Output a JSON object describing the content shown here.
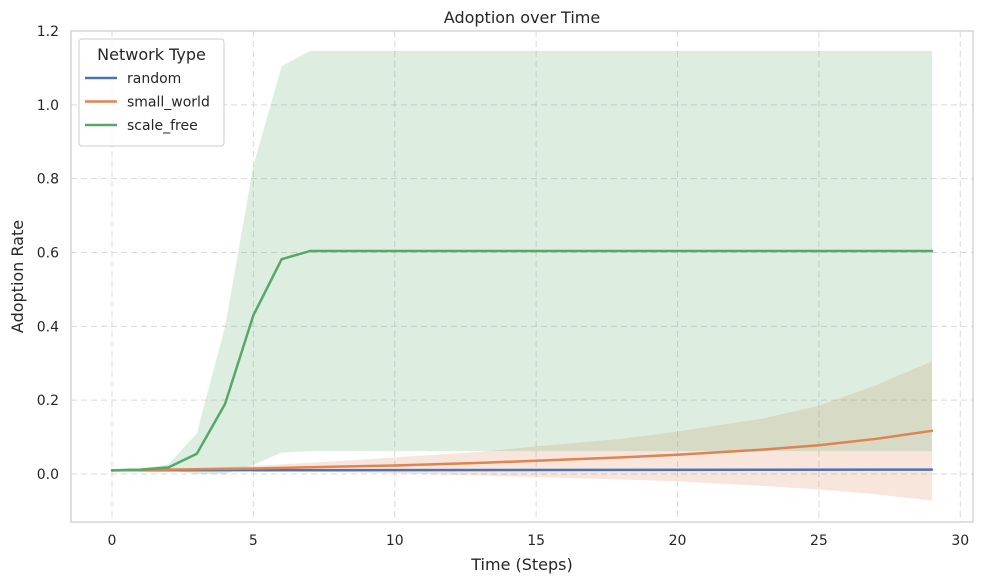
{
  "chart_data": {
    "type": "line",
    "title": "Adoption over Time",
    "xlabel": "Time (Steps)",
    "ylabel": "Adoption Rate",
    "xlim": [
      -1.45,
      30.45
    ],
    "ylim": [
      -0.13,
      1.2
    ],
    "xticks": [
      0,
      5,
      10,
      15,
      20,
      25,
      30
    ],
    "yticks": [
      0.0,
      0.2,
      0.4,
      0.6,
      0.8,
      1.0,
      1.2
    ],
    "xtick_labels": [
      "0",
      "5",
      "10",
      "15",
      "20",
      "25",
      "30"
    ],
    "ytick_labels": [
      "0.0",
      "0.2",
      "0.4",
      "0.6",
      "0.8",
      "1.0",
      "1.2"
    ],
    "grid": true,
    "legend": {
      "title": "Network Type",
      "position": "top-left"
    },
    "series": [
      {
        "name": "random",
        "color": "#4c72b0",
        "x": [
          0,
          29
        ],
        "y": [
          0.01,
          0.012
        ],
        "lower": [
          0.01,
          0.012
        ],
        "upper": [
          0.01,
          0.012
        ]
      },
      {
        "name": "small_world",
        "color": "#dd8452",
        "x": [
          0,
          2,
          5,
          8,
          10,
          13,
          15,
          18,
          20,
          23,
          25,
          27,
          29
        ],
        "y": [
          0.01,
          0.012,
          0.015,
          0.02,
          0.023,
          0.03,
          0.036,
          0.045,
          0.052,
          0.066,
          0.078,
          0.095,
          0.117
        ],
        "lower": [
          0.01,
          0.01,
          0.008,
          0.005,
          0.002,
          -0.004,
          -0.008,
          -0.015,
          -0.02,
          -0.032,
          -0.042,
          -0.055,
          -0.072
        ],
        "upper": [
          0.01,
          0.014,
          0.022,
          0.035,
          0.045,
          0.06,
          0.075,
          0.095,
          0.115,
          0.15,
          0.185,
          0.24,
          0.305
        ]
      },
      {
        "name": "scale_free",
        "color": "#55a868",
        "fill": "#55a868",
        "x": [
          0,
          1,
          2,
          3,
          4,
          5,
          6,
          7,
          10,
          15,
          20,
          25,
          29
        ],
        "y": [
          0.01,
          0.012,
          0.018,
          0.055,
          0.19,
          0.43,
          0.582,
          0.604,
          0.604,
          0.604,
          0.604,
          0.604,
          0.604
        ],
        "lower": [
          0.01,
          0.01,
          0.01,
          0.0,
          0.0,
          0.025,
          0.058,
          0.062,
          0.062,
          0.062,
          0.062,
          0.062,
          0.062
        ],
        "upper": [
          0.01,
          0.014,
          0.026,
          0.11,
          0.4,
          0.835,
          1.105,
          1.146,
          1.146,
          1.146,
          1.146,
          1.146,
          1.146
        ]
      }
    ]
  }
}
